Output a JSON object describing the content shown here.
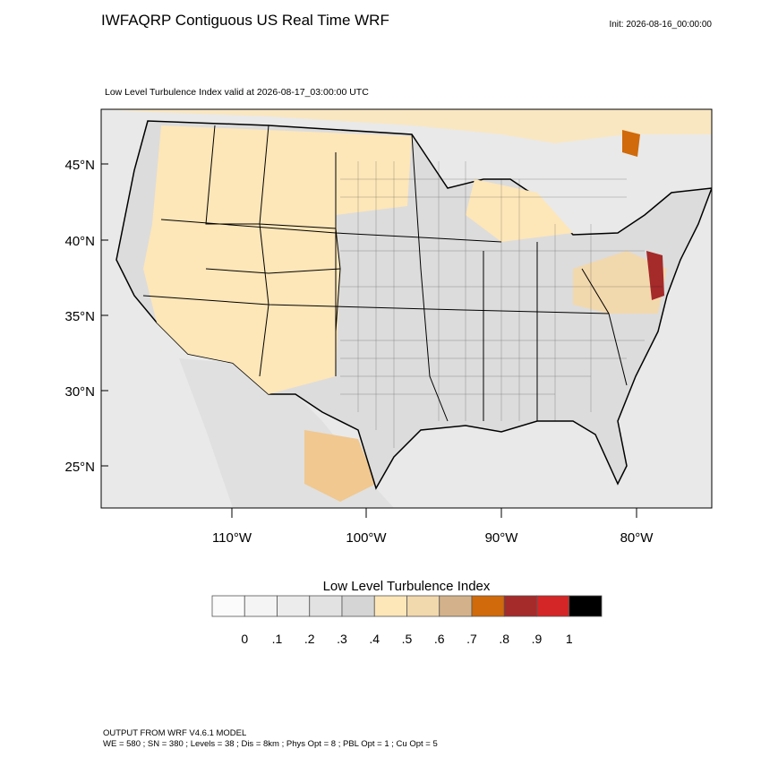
{
  "header": {
    "title": "IWFAQRP Contiguous US Real Time WRF",
    "init": "Init: 2026-08-16_00:00:00"
  },
  "map": {
    "subtitle": "Low Level Turbulence Index valid at 2026-08-17_03:00:00 UTC",
    "lat_labels": [
      "45°N",
      "40°N",
      "35°N",
      "30°N",
      "25°N"
    ],
    "lon_labels": [
      "110°W",
      "100°W",
      "90°W",
      "80°W"
    ]
  },
  "colorbar": {
    "title": "Low Level Turbulence Index",
    "colors": [
      "#fbfbfb",
      "#f4f4f4",
      "#ececec",
      "#e2e2e2",
      "#d5d5d5",
      "#fde6b8",
      "#f2d8ad",
      "#d3b28b",
      "#d06a0a",
      "#a52a2a",
      "#d42626",
      "#000000"
    ],
    "labels": [
      "0",
      ".1",
      ".2",
      ".3",
      ".4",
      ".5",
      ".6",
      ".7",
      ".8",
      ".9",
      "1"
    ]
  },
  "footer": {
    "lines": [
      "OUTPUT FROM WRF V4.6.1 MODEL",
      "WE = 580 ; SN = 380 ; Levels = 38 ; Dis = 8km ; Phys Opt = 8 ; PBL Opt = 1 ; Cu Opt = 5"
    ]
  }
}
